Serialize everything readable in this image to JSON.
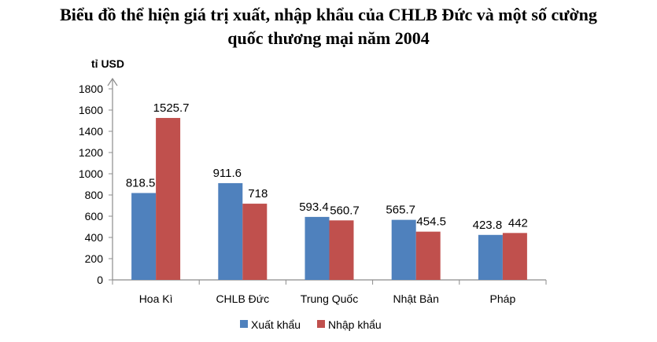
{
  "chart_data": {
    "type": "bar",
    "title_line1": "Biểu đồ thể hiện giá trị xuất, nhập khẩu của CHLB Đức và một số cường",
    "title_line2": "quốc thương mại năm 2004",
    "ylabel": "tỉ USD",
    "xlabel": "",
    "ylim": [
      0,
      1800
    ],
    "yticks": [
      0,
      200,
      400,
      600,
      800,
      1000,
      1200,
      1400,
      1600,
      1800
    ],
    "grid": false,
    "legend_position": "bottom",
    "categories": [
      "Hoa Kì",
      "CHLB Đức",
      "Trung Quốc",
      "Nhật Bản",
      "Pháp"
    ],
    "series": [
      {
        "name": "Xuất khẩu",
        "color": "#4f81bd",
        "values": [
          818.5,
          911.6,
          593.4,
          565.7,
          423.8
        ],
        "labels": [
          "818.5",
          "911.6",
          "593.4",
          "565.7",
          "423.8"
        ]
      },
      {
        "name": "Nhập khẩu",
        "color": "#c0504d",
        "values": [
          1525.7,
          718,
          560.7,
          454.5,
          442
        ],
        "labels": [
          "1525.7",
          "718",
          "560.7",
          "454.5",
          "442"
        ]
      }
    ]
  }
}
